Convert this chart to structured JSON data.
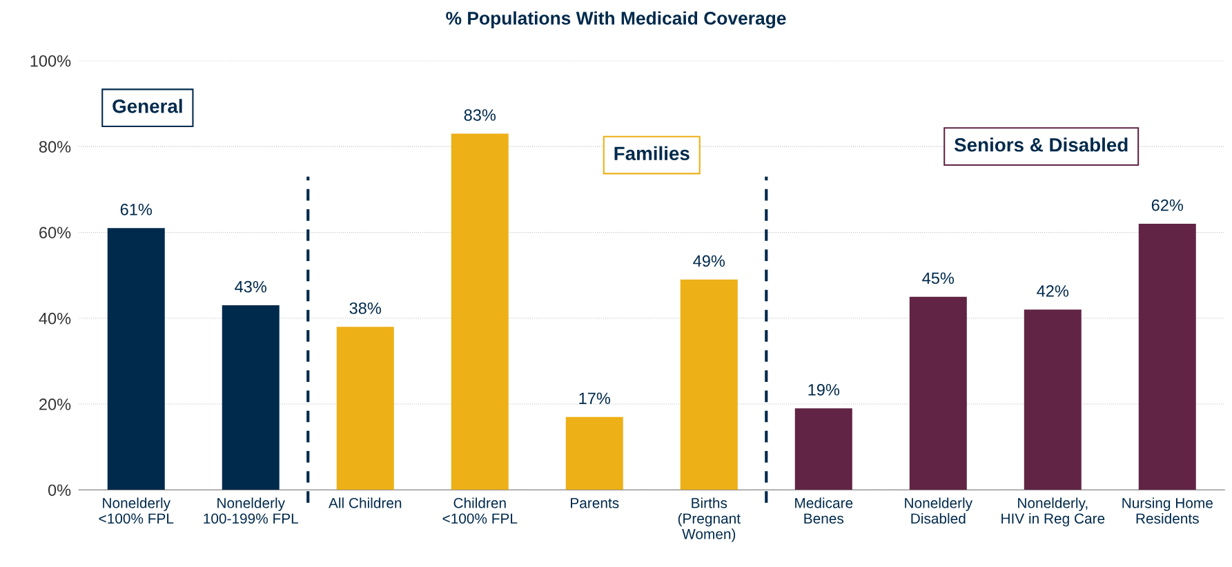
{
  "chart_data": {
    "type": "bar",
    "title": "% Populations With Medicaid Coverage",
    "categories": [
      "Nonelderly\n<100% FPL",
      "Nonelderly\n100-199% FPL",
      "All Children",
      "Children\n<100% FPL",
      "Parents",
      "Births\n(Pregnant\nWomen)",
      "Medicare\nBenes",
      "Nonelderly\nDisabled",
      "Nonelderly,\nHIV in Reg Care",
      "Nursing Home\nResidents"
    ],
    "values": [
      61,
      43,
      38,
      83,
      17,
      49,
      19,
      45,
      42,
      62
    ],
    "colors": [
      "#002a4c",
      "#002a4c",
      "#edb017",
      "#edb017",
      "#edb017",
      "#edb017",
      "#612444",
      "#612444",
      "#612444",
      "#612444"
    ],
    "value_labels": [
      "61%",
      "43%",
      "38%",
      "83%",
      "17%",
      "49%",
      "19%",
      "45%",
      "42%",
      "62%"
    ],
    "ylim": [
      0,
      100
    ],
    "yticks": [
      {
        "value": 0,
        "label": "0%"
      },
      {
        "value": 20,
        "label": "20%"
      },
      {
        "value": 40,
        "label": "40%"
      },
      {
        "value": 60,
        "label": "60%"
      },
      {
        "value": 80,
        "label": "80%"
      },
      {
        "value": 100,
        "label": "100%"
      }
    ],
    "grid": "y",
    "annotations": [
      "General",
      "Families",
      "Seniors & Disabled"
    ]
  }
}
